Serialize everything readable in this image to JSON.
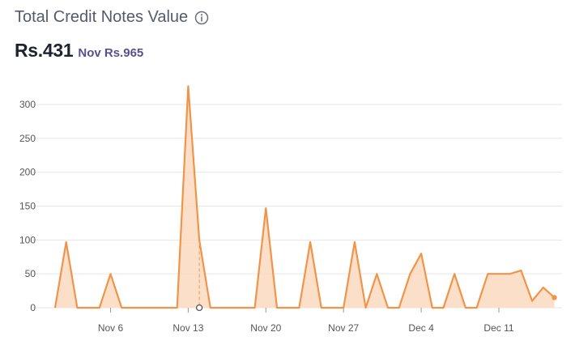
{
  "header": {
    "title": "Total Credit Notes Value",
    "current_value": "Rs.431",
    "comparison": "Nov Rs.965",
    "info_icon": "info-icon"
  },
  "colors": {
    "line": "#f0944a",
    "fill": "#fcd9c0",
    "grid": "#e6e6e6"
  },
  "chart_data": {
    "type": "area",
    "title": "",
    "xlabel": "",
    "ylabel": "",
    "ylim": [
      0,
      340
    ],
    "grid": true,
    "yticks": [
      0,
      50,
      100,
      150,
      200,
      250,
      300
    ],
    "xticks": [
      {
        "label": "Nov 6",
        "index": 5
      },
      {
        "label": "Nov 13",
        "index": 12
      },
      {
        "label": "Nov 20",
        "index": 19
      },
      {
        "label": "Nov 27",
        "index": 26
      },
      {
        "label": "Dec 4",
        "index": 33
      },
      {
        "label": "Dec 11",
        "index": 40
      }
    ],
    "x_start": "Nov 1",
    "values": [
      0,
      97,
      0,
      0,
      0,
      50,
      0,
      0,
      0,
      0,
      0,
      0,
      327,
      100,
      0,
      0,
      0,
      0,
      0,
      147,
      0,
      0,
      0,
      97,
      0,
      0,
      0,
      97,
      0,
      50,
      0,
      0,
      50,
      80,
      0,
      0,
      50,
      0,
      0,
      50,
      50,
      50,
      55,
      10,
      30,
      15
    ],
    "highlight_index": 13
  }
}
